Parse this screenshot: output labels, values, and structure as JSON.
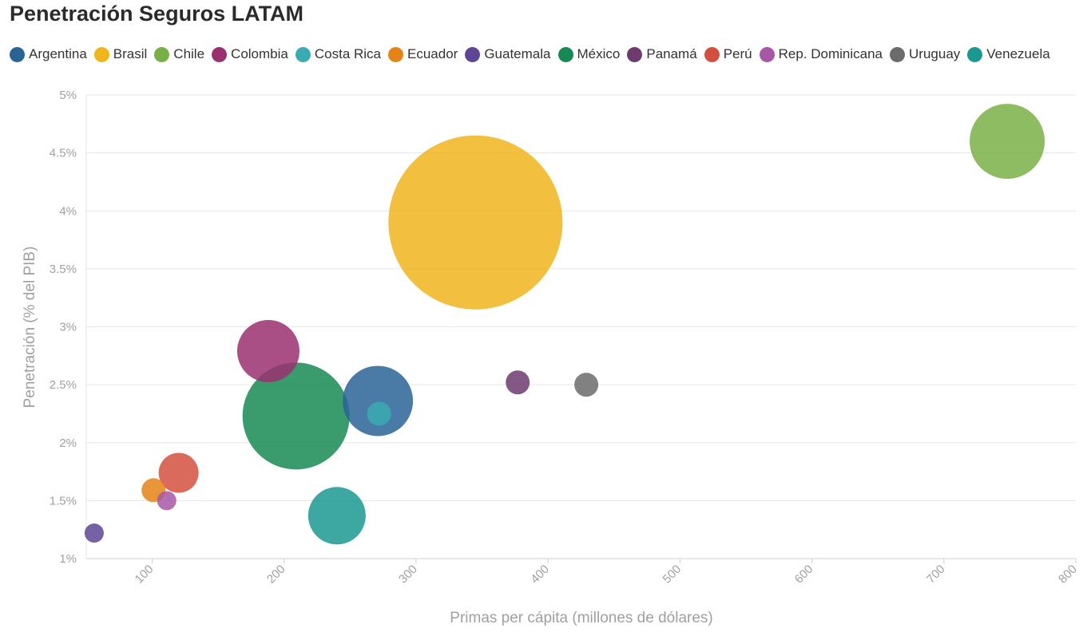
{
  "chart_data": {
    "type": "scatter",
    "title": "Penetración Seguros LATAM",
    "xlabel": "Primas per cápita (millones de dólares)",
    "ylabel": "Penetración (% del PIB)",
    "xlim": [
      50,
      800
    ],
    "ylim": [
      1,
      5
    ],
    "x_ticks": [
      "100",
      "200",
      "300",
      "400",
      "500",
      "600",
      "700",
      "800"
    ],
    "y_ticks": [
      "1%",
      "1.5%",
      "2%",
      "2.5%",
      "3%",
      "3.5%",
      "4%",
      "4.5%",
      "5%"
    ],
    "grid": true,
    "legend_position": "top",
    "series": [
      {
        "name": "Argentina",
        "color": "#2A6496",
        "x": 271,
        "y": 2.36,
        "size": 44
      },
      {
        "name": "Brasil",
        "color": "#F0B41C",
        "x": 345,
        "y": 3.9,
        "size": 109
      },
      {
        "name": "Chile",
        "color": "#79B046",
        "x": 748,
        "y": 4.6,
        "size": 47
      },
      {
        "name": "Colombia",
        "color": "#9A3070",
        "x": 188,
        "y": 2.79,
        "size": 39
      },
      {
        "name": "Costa Rica",
        "color": "#3AABB0",
        "x": 272,
        "y": 2.25,
        "size": 15
      },
      {
        "name": "Ecuador",
        "color": "#E58317",
        "x": 101,
        "y": 1.59,
        "size": 15
      },
      {
        "name": "Guatemala",
        "color": "#5E4595",
        "x": 56,
        "y": 1.22,
        "size": 12
      },
      {
        "name": "México",
        "color": "#178A54",
        "x": 209,
        "y": 2.23,
        "size": 67
      },
      {
        "name": "Panamá",
        "color": "#6E3B6E",
        "x": 377,
        "y": 2.52,
        "size": 15
      },
      {
        "name": "Perú",
        "color": "#D4503E",
        "x": 120,
        "y": 1.74,
        "size": 25
      },
      {
        "name": "Rep. Dominicana",
        "color": "#A657A6",
        "x": 111,
        "y": 1.5,
        "size": 12
      },
      {
        "name": "Uruguay",
        "color": "#6B6B6B",
        "x": 429,
        "y": 2.5,
        "size": 15
      },
      {
        "name": "Venezuela",
        "color": "#1A9990",
        "x": 240,
        "y": 1.37,
        "size": 36
      }
    ]
  }
}
